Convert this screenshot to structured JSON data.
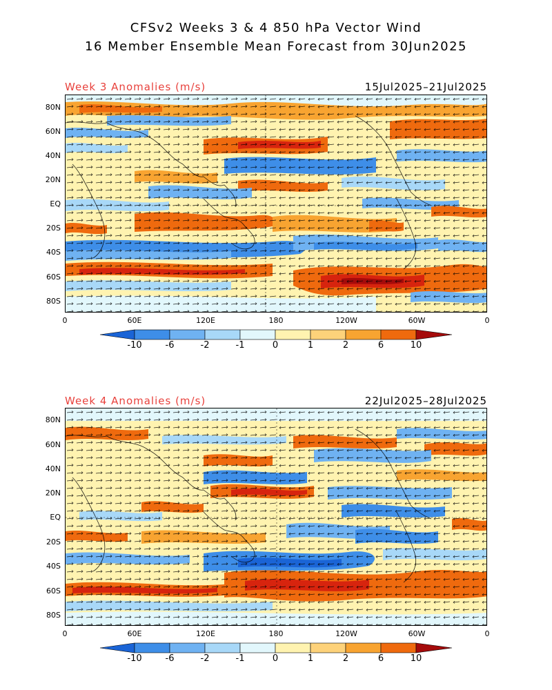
{
  "title": {
    "line1": "CFSv2 Weeks 3 & 4 850 hPa Vector Wind",
    "line2": "16 Member Ensemble Mean Forecast from 30Jun2025"
  },
  "panels": [
    {
      "label": "Week 3 Anomalies (m/s)",
      "date_range": "15Jul2025–21Jul2025"
    },
    {
      "label": "Week 4 Anomalies (m/s)",
      "date_range": "22Jul2025–28Jul2025"
    }
  ],
  "lat_ticks": [
    "80N",
    "60N",
    "40N",
    "20N",
    "EQ",
    "20S",
    "40S",
    "60S",
    "80S"
  ],
  "lon_ticks": [
    "0",
    "60E",
    "120E",
    "180",
    "120W",
    "60W",
    "0"
  ],
  "colorbar": {
    "labels": [
      "-10",
      "-6",
      "-2",
      "-1",
      "0",
      "1",
      "2",
      "6",
      "10"
    ],
    "colors": [
      "#1a64d6",
      "#3e8ee8",
      "#6fb2f2",
      "#a8d8f8",
      "#e2f7fc",
      "#fff3b0",
      "#fdd27a",
      "#f8a431",
      "#ef6a0e",
      "#d7240e",
      "#a50b0b"
    ]
  }
}
